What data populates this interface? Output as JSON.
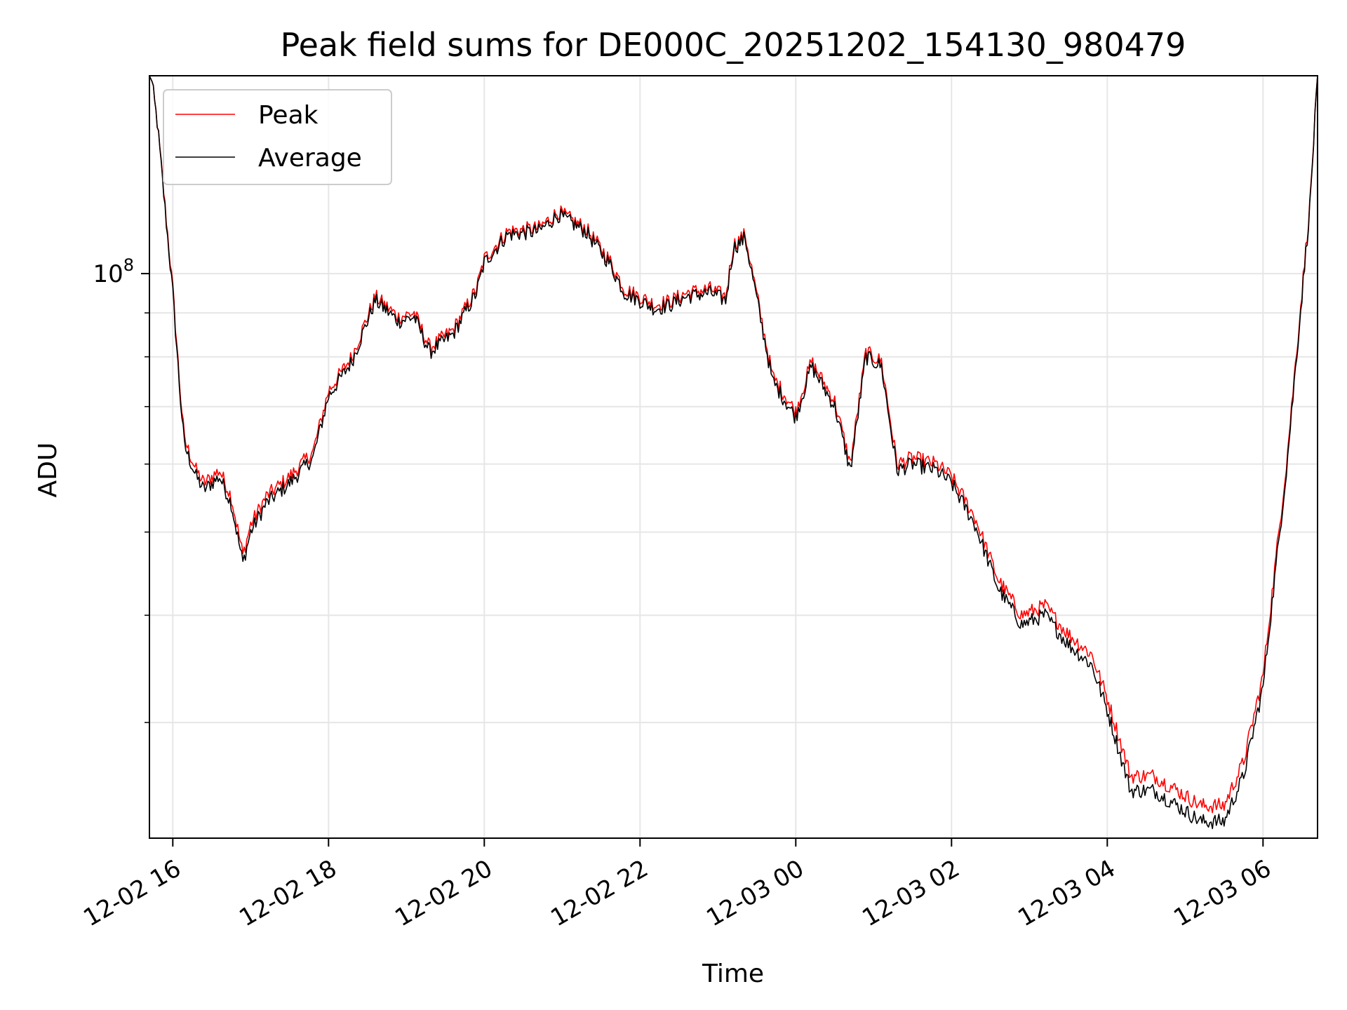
{
  "chart_data": {
    "type": "line",
    "title": "Peak field sums for DE000C_20251202_154130_980479",
    "xlabel": "Time",
    "ylabel": "ADU",
    "yscale": "log",
    "ylim": [
      22000000,
      170000000
    ],
    "xlim_hours": [
      15.7,
      30.7
    ],
    "grid": true,
    "legend_position": "upper-left",
    "x_ticks": [
      {
        "hour": 16,
        "label": "12-02 16"
      },
      {
        "hour": 18,
        "label": "12-02 18"
      },
      {
        "hour": 20,
        "label": "12-02 20"
      },
      {
        "hour": 22,
        "label": "12-02 22"
      },
      {
        "hour": 24,
        "label": "12-03 00"
      },
      {
        "hour": 26,
        "label": "12-03 02"
      },
      {
        "hour": 28,
        "label": "12-03 04"
      },
      {
        "hour": 30,
        "label": "12-03 06"
      }
    ],
    "y_major_tick": {
      "value": 100000000,
      "label_base": "10",
      "label_exp": "8"
    },
    "y_minor_ticks": [
      30000000,
      40000000,
      50000000,
      60000000,
      70000000,
      80000000,
      90000000
    ],
    "x_hours": [
      15.72,
      15.8,
      15.9,
      16.0,
      16.1,
      16.15,
      16.3,
      16.4,
      16.6,
      16.75,
      16.9,
      17.0,
      17.2,
      17.5,
      17.8,
      18.0,
      18.3,
      18.6,
      18.9,
      19.1,
      19.3,
      19.6,
      19.9,
      20.0,
      20.3,
      20.7,
      20.95,
      21.3,
      21.6,
      21.8,
      22.2,
      22.4,
      22.6,
      22.9,
      23.1,
      23.2,
      23.35,
      23.7,
      24.0,
      24.2,
      24.5,
      24.7,
      24.9,
      25.1,
      25.3,
      25.5,
      25.8,
      26.0,
      26.3,
      26.6,
      26.9,
      27.2,
      27.5,
      27.8,
      28.0,
      28.3,
      28.6,
      28.9,
      29.2,
      29.5,
      29.75,
      30.0,
      30.3,
      30.6,
      30.7
    ],
    "series": [
      {
        "name": "Peak",
        "color": "#ff0000",
        "values": [
          170000000,
          150000000,
          120000000,
          96000000,
          72000000,
          64000000,
          59000000,
          57000000,
          59000000,
          55000000,
          47000000,
          51000000,
          55000000,
          58000000,
          62000000,
          73000000,
          80000000,
          94000000,
          89000000,
          90000000,
          82000000,
          86000000,
          96000000,
          104000000,
          112000000,
          113000000,
          118000000,
          113000000,
          104000000,
          96000000,
          92000000,
          93000000,
          95000000,
          96000000,
          94000000,
          108000000,
          111000000,
          76000000,
          69000000,
          79000000,
          71000000,
          60000000,
          81000000,
          79000000,
          60000000,
          61000000,
          60000000,
          58000000,
          52000000,
          44000000,
          40000000,
          41000000,
          38000000,
          36000000,
          32000000,
          26000000,
          26000000,
          25000000,
          24000000,
          24000000,
          27000000,
          34000000,
          60000000,
          120000000,
          170000000
        ]
      },
      {
        "name": "Average",
        "color": "#000000",
        "values": [
          170000000,
          150000000,
          119000000,
          95000000,
          71000000,
          63000000,
          58000000,
          56000000,
          58000000,
          54000000,
          46000000,
          50000000,
          54000000,
          57000000,
          61000000,
          72000000,
          79000000,
          93000000,
          88000000,
          89000000,
          81000000,
          85000000,
          95000000,
          103000000,
          111000000,
          112000000,
          117000000,
          112000000,
          103000000,
          95000000,
          91000000,
          92000000,
          94000000,
          95000000,
          93000000,
          107000000,
          110000000,
          75000000,
          68000000,
          78000000,
          70000000,
          59000000,
          80000000,
          78000000,
          59000000,
          60000000,
          59000000,
          57000000,
          51000000,
          43000000,
          39000000,
          40000000,
          37000000,
          35000000,
          31000000,
          25000000,
          25000000,
          24000000,
          23000000,
          23000000,
          26000000,
          33000000,
          59000000,
          119000000,
          170000000
        ]
      }
    ]
  }
}
